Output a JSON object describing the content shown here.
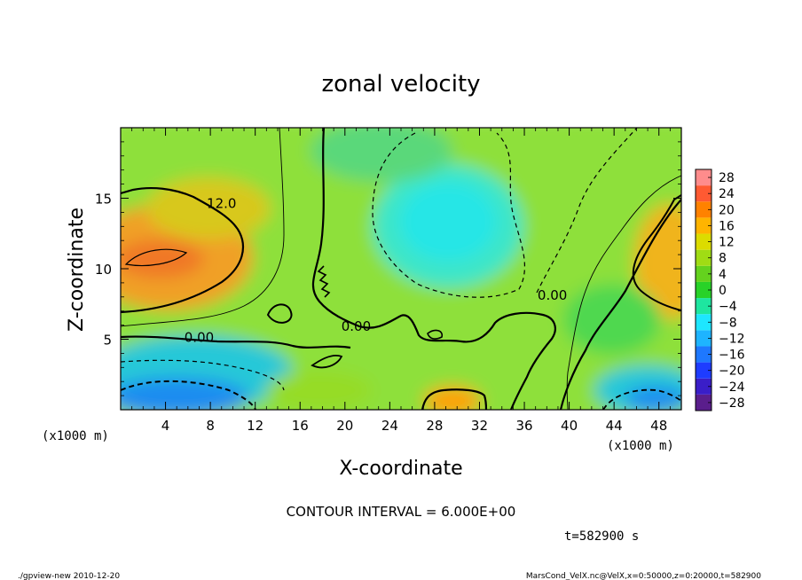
{
  "chart_data": {
    "type": "heatmap",
    "title": "zonal velocity",
    "xlabel": "X-coordinate",
    "ylabel": "Z-coordinate",
    "x_unit_label": "(x1000 m)",
    "z_unit_label": "(x1000 m)",
    "xlim": [
      0,
      50
    ],
    "ylim": [
      0,
      20
    ],
    "x_ticks": [
      4,
      8,
      12,
      16,
      20,
      24,
      28,
      32,
      36,
      40,
      44,
      48
    ],
    "y_ticks": [
      5,
      10,
      15
    ],
    "colorbar": {
      "levels": [
        -28,
        -24,
        -20,
        -16,
        -12,
        -8,
        -4,
        0,
        4,
        8,
        12,
        16,
        20,
        24,
        28
      ],
      "labels": [
        "28",
        "24",
        "20",
        "16",
        "12",
        "8",
        "4",
        "0",
        "−4",
        "−8",
        "−12",
        "−16",
        "−20",
        "−24",
        "−28"
      ],
      "colors": [
        "#5a1e8c",
        "#3a1ec8",
        "#1e3cff",
        "#1e78ff",
        "#1eb4ff",
        "#1ee6ff",
        "#1ee6a0",
        "#28d228",
        "#64d21e",
        "#a0dc14",
        "#dcdc00",
        "#ffb400",
        "#ff8200",
        "#ff5a32",
        "#ff8c8c"
      ]
    },
    "contour_labels": [
      {
        "text": "12.0",
        "x": 9.0,
        "z": 14.3
      },
      {
        "text": "0.00",
        "x": 7.0,
        "z": 4.8
      },
      {
        "text": "0.00",
        "x": 21.0,
        "z": 5.6
      },
      {
        "text": "0.00",
        "x": 38.5,
        "z": 7.8
      }
    ],
    "interval_text": "CONTOUR INTERVAL = 6.000E+00",
    "time_text": "t=582900 s"
  },
  "footer": {
    "left": "./gpview-new  2010-12-20",
    "right": "MarsCond_VelX.nc@VelX,x=0:50000,z=0:20000,t=582900"
  }
}
